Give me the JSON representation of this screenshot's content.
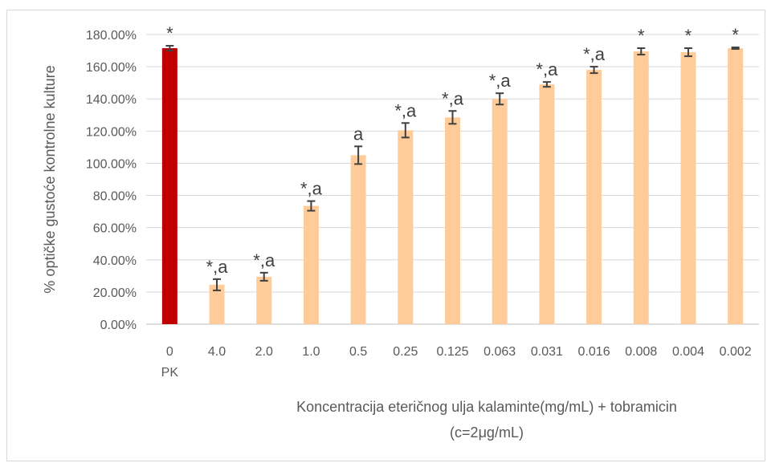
{
  "chart_data": {
    "type": "bar",
    "title": "",
    "categories": [
      "0",
      "4.0",
      "2.0",
      "1.0",
      "0.5",
      "0.25",
      "0.125",
      "0.063",
      "0.031",
      "0.016",
      "0.008",
      "0.004",
      "0.002"
    ],
    "sub_label": "PK",
    "values": [
      171.5,
      24.5,
      29.5,
      73.5,
      105.0,
      120.5,
      128.5,
      140.0,
      149.0,
      158.0,
      169.5,
      169.0,
      171.5
    ],
    "errors": [
      1.5,
      3.5,
      2.5,
      3.0,
      5.5,
      4.5,
      4.0,
      3.5,
      1.5,
      2.0,
      2.0,
      2.5,
      0.5
    ],
    "annotations": [
      "*",
      "*,a",
      "*,a",
      "*,a",
      "a",
      "*,a",
      "*,a",
      "*,a",
      "*,a",
      "*,a",
      "*",
      "*",
      "*"
    ],
    "ylabel": "% optičke gustoće kontrolne kulture",
    "xlabel_lines": [
      "Koncentracija eteričnog ulja kalaminte(mg/mL) + tobramicin",
      "(c=2μg/mL)"
    ],
    "yticks": [
      "0.00%",
      "20.00%",
      "40.00%",
      "60.00%",
      "80.00%",
      "100.00%",
      "120.00%",
      "140.00%",
      "160.00%",
      "180.00%"
    ],
    "ylim": [
      0,
      180
    ],
    "grid": true,
    "colors": {
      "control": "#c00000",
      "bar": "#ffcc99",
      "grid": "#d9d9d9",
      "axis": "#bfbfbf",
      "error": "#404040"
    }
  }
}
